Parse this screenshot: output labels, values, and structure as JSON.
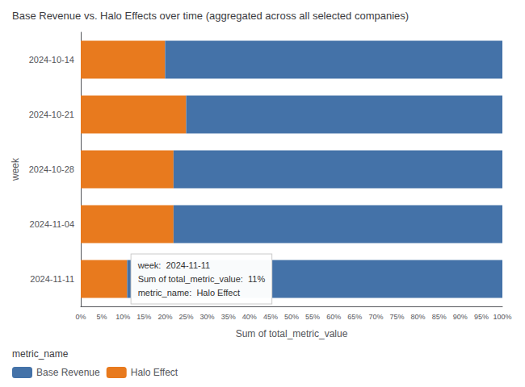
{
  "chart_data": {
    "type": "bar",
    "title": "Base Revenue vs. Halo Effects over time (aggregated across all selected companies)",
    "orientation": "horizontal",
    "stacked": true,
    "categories": [
      "2024-10-14",
      "2024-10-21",
      "2024-10-28",
      "2024-11-04",
      "2024-11-11"
    ],
    "series": [
      {
        "name": "Halo Effect",
        "color": "#E87A1E",
        "values": [
          20,
          25,
          22,
          22,
          11
        ]
      },
      {
        "name": "Base Revenue",
        "color": "#4472A8",
        "values": [
          80,
          75,
          78,
          78,
          89
        ]
      }
    ],
    "xlabel": "Sum of total_metric_value",
    "ylabel": "week",
    "xlim": [
      0,
      100
    ],
    "xticks": [
      {
        "value": 0,
        "label": "0%"
      },
      {
        "value": 5,
        "label": "5%"
      },
      {
        "value": 10,
        "label": "10%"
      },
      {
        "value": 15,
        "label": "15%"
      },
      {
        "value": 20,
        "label": "20%"
      },
      {
        "value": 25,
        "label": "25%"
      },
      {
        "value": 30,
        "label": "30%"
      },
      {
        "value": 35,
        "label": "35%"
      },
      {
        "value": 40,
        "label": "40%"
      },
      {
        "value": 45,
        "label": "45%"
      },
      {
        "value": 50,
        "label": "50%"
      },
      {
        "value": 55,
        "label": "55%"
      },
      {
        "value": 60,
        "label": "60%"
      },
      {
        "value": 65,
        "label": "65%"
      },
      {
        "value": 70,
        "label": "70%"
      },
      {
        "value": 75,
        "label": "75%"
      },
      {
        "value": 80,
        "label": "80%"
      },
      {
        "value": 85,
        "label": "85%"
      },
      {
        "value": 90,
        "label": "90%"
      },
      {
        "value": 95,
        "label": "95%"
      },
      {
        "value": 100,
        "label": "100%"
      }
    ],
    "grid": false,
    "legend": "lower left",
    "legend_title": "metric_name",
    "annotations": [
      "week:  2024-11-11\nSum of total_metric_value:  11%\nmetric_name:  Halo Effect"
    ]
  }
}
